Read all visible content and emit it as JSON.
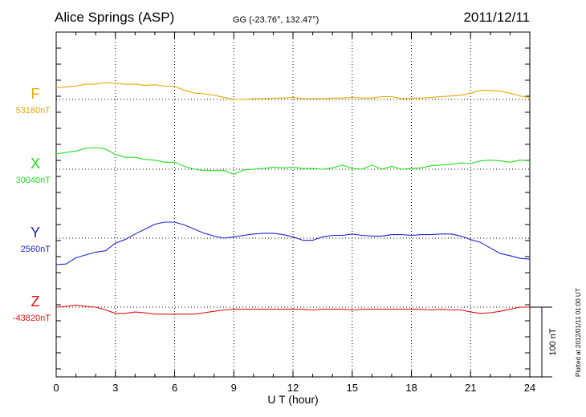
{
  "chart_data": {
    "type": "line",
    "title": "Alice Springs (ASP)",
    "coords": "GG (-23.76°, 132.47°)",
    "date": "2011/12/11",
    "xlabel": "U T (hour)",
    "xlim": [
      0,
      24
    ],
    "xticks": [
      "0",
      "3",
      "6",
      "9",
      "12",
      "15",
      "18",
      "21",
      "24"
    ],
    "scale_label": "100 nT",
    "scale_nT": 100,
    "footnote": "Plotted at 2012/01/11 01:00 UT",
    "grid": true,
    "series": [
      {
        "name": "F",
        "baseline_label": "53180nT",
        "color": "#e8a800",
        "baseline_nT": 53180,
        "points": [
          [
            0,
            17
          ],
          [
            0.5,
            18
          ],
          [
            1,
            19
          ],
          [
            1.5,
            22
          ],
          [
            2,
            22
          ],
          [
            2.5,
            24
          ],
          [
            3,
            23
          ],
          [
            3.5,
            22
          ],
          [
            4,
            22
          ],
          [
            4.5,
            20
          ],
          [
            5,
            21
          ],
          [
            5.5,
            19
          ],
          [
            6,
            19
          ],
          [
            6.5,
            13
          ],
          [
            7,
            9
          ],
          [
            7.5,
            8
          ],
          [
            8,
            6
          ],
          [
            8.5,
            3
          ],
          [
            9,
            0
          ],
          [
            9.5,
            0
          ],
          [
            10,
            1
          ],
          [
            10.5,
            1
          ],
          [
            11,
            2
          ],
          [
            11.5,
            2
          ],
          [
            12,
            3
          ],
          [
            12.5,
            1
          ],
          [
            13,
            1
          ],
          [
            13.5,
            1
          ],
          [
            14,
            2
          ],
          [
            14.5,
            2
          ],
          [
            15,
            3
          ],
          [
            15.5,
            2
          ],
          [
            16,
            2
          ],
          [
            16.5,
            4
          ],
          [
            17,
            4
          ],
          [
            17.5,
            1
          ],
          [
            18,
            2
          ],
          [
            18.5,
            2
          ],
          [
            19,
            3
          ],
          [
            19.5,
            4
          ],
          [
            20,
            5
          ],
          [
            20.5,
            6
          ],
          [
            21,
            9
          ],
          [
            21.5,
            13
          ],
          [
            22,
            13
          ],
          [
            22.5,
            12
          ],
          [
            23,
            9
          ],
          [
            23.5,
            5
          ],
          [
            24,
            3
          ]
        ]
      },
      {
        "name": "X",
        "baseline_label": "30040nT",
        "color": "#22dd22",
        "baseline_nT": 30040,
        "points": [
          [
            0,
            22
          ],
          [
            0.5,
            24
          ],
          [
            1,
            26
          ],
          [
            1.5,
            30
          ],
          [
            2,
            31
          ],
          [
            2.5,
            29
          ],
          [
            3,
            21
          ],
          [
            3.5,
            17
          ],
          [
            4,
            17
          ],
          [
            4.5,
            14
          ],
          [
            5,
            13
          ],
          [
            5.5,
            10
          ],
          [
            6,
            10
          ],
          [
            6.5,
            4
          ],
          [
            7,
            0
          ],
          [
            7.5,
            -2
          ],
          [
            8,
            -2
          ],
          [
            8.5,
            -2
          ],
          [
            9,
            -7
          ],
          [
            9.5,
            -1
          ],
          [
            10,
            0
          ],
          [
            10.5,
            1
          ],
          [
            11,
            3
          ],
          [
            11.5,
            2
          ],
          [
            12,
            3
          ],
          [
            12.5,
            1
          ],
          [
            13,
            1
          ],
          [
            13.5,
            0
          ],
          [
            14,
            2
          ],
          [
            14.5,
            6
          ],
          [
            15,
            1
          ],
          [
            15.5,
            0
          ],
          [
            16,
            6
          ],
          [
            16.5,
            0
          ],
          [
            17,
            4
          ],
          [
            17.5,
            0
          ],
          [
            18,
            1
          ],
          [
            18.5,
            2
          ],
          [
            19,
            5
          ],
          [
            19.5,
            6
          ],
          [
            20,
            7
          ],
          [
            20.5,
            9
          ],
          [
            21,
            8
          ],
          [
            21.5,
            12
          ],
          [
            22,
            13
          ],
          [
            22.5,
            12
          ],
          [
            23,
            10
          ],
          [
            23.5,
            13
          ],
          [
            24,
            12
          ]
        ]
      },
      {
        "name": "Y",
        "baseline_label": "2560nT",
        "color": "#2222cc",
        "baseline_nT": 2560,
        "points": [
          [
            0,
            -38
          ],
          [
            0.5,
            -37
          ],
          [
            1,
            -28
          ],
          [
            1.5,
            -24
          ],
          [
            2,
            -20
          ],
          [
            2.5,
            -18
          ],
          [
            3,
            -7
          ],
          [
            3.5,
            -2
          ],
          [
            4,
            6
          ],
          [
            4.5,
            13
          ],
          [
            5,
            20
          ],
          [
            5.5,
            23
          ],
          [
            6,
            23
          ],
          [
            6.5,
            19
          ],
          [
            7,
            13
          ],
          [
            7.5,
            7
          ],
          [
            8,
            3
          ],
          [
            8.5,
            0
          ],
          [
            9,
            2
          ],
          [
            9.5,
            4
          ],
          [
            10,
            6
          ],
          [
            10.5,
            7
          ],
          [
            11,
            7
          ],
          [
            11.5,
            5
          ],
          [
            12,
            2
          ],
          [
            12.5,
            -3
          ],
          [
            13,
            -3
          ],
          [
            13.5,
            2
          ],
          [
            14,
            4
          ],
          [
            14.5,
            4
          ],
          [
            15,
            6
          ],
          [
            15.5,
            4
          ],
          [
            16,
            3
          ],
          [
            16.5,
            3
          ],
          [
            17,
            5
          ],
          [
            17.5,
            5
          ],
          [
            18,
            4
          ],
          [
            18.5,
            5
          ],
          [
            19,
            5
          ],
          [
            19.5,
            6
          ],
          [
            20,
            6
          ],
          [
            20.5,
            3
          ],
          [
            21,
            -2
          ],
          [
            21.5,
            -6
          ],
          [
            22,
            -14
          ],
          [
            22.5,
            -22
          ],
          [
            23,
            -25
          ],
          [
            23.5,
            -29
          ],
          [
            24,
            -30
          ]
        ]
      },
      {
        "name": "Z",
        "baseline_label": "-43820nT",
        "color": "#dd1111",
        "baseline_nT": -43820,
        "points": [
          [
            0,
            0
          ],
          [
            0.5,
            1
          ],
          [
            1,
            3
          ],
          [
            1.5,
            1
          ],
          [
            2,
            0
          ],
          [
            2.5,
            -4
          ],
          [
            3,
            -9
          ],
          [
            3.5,
            -9
          ],
          [
            4,
            -7
          ],
          [
            4.5,
            -8
          ],
          [
            5,
            -10
          ],
          [
            5.5,
            -10
          ],
          [
            6,
            -10
          ],
          [
            6.5,
            -10
          ],
          [
            7,
            -10
          ],
          [
            7.5,
            -8
          ],
          [
            8,
            -6
          ],
          [
            8.5,
            -4
          ],
          [
            9,
            -3
          ],
          [
            9.5,
            -3
          ],
          [
            10,
            -3
          ],
          [
            10.5,
            -3
          ],
          [
            11,
            -3
          ],
          [
            11.5,
            -3
          ],
          [
            12,
            -3
          ],
          [
            12.5,
            -3
          ],
          [
            13,
            -4
          ],
          [
            13.5,
            -3
          ],
          [
            14,
            -3
          ],
          [
            14.5,
            -3
          ],
          [
            15,
            -4
          ],
          [
            15.5,
            -3
          ],
          [
            16,
            -3
          ],
          [
            16.5,
            -3
          ],
          [
            17,
            -3
          ],
          [
            17.5,
            -3
          ],
          [
            18,
            -3
          ],
          [
            18.5,
            -3
          ],
          [
            19,
            -4
          ],
          [
            19.5,
            -3
          ],
          [
            20,
            -4
          ],
          [
            20.5,
            -4
          ],
          [
            21,
            -7
          ],
          [
            21.5,
            -9
          ],
          [
            22,
            -8
          ],
          [
            22.5,
            -6
          ],
          [
            23,
            -3
          ],
          [
            23.5,
            0
          ],
          [
            24,
            0
          ]
        ]
      }
    ]
  }
}
